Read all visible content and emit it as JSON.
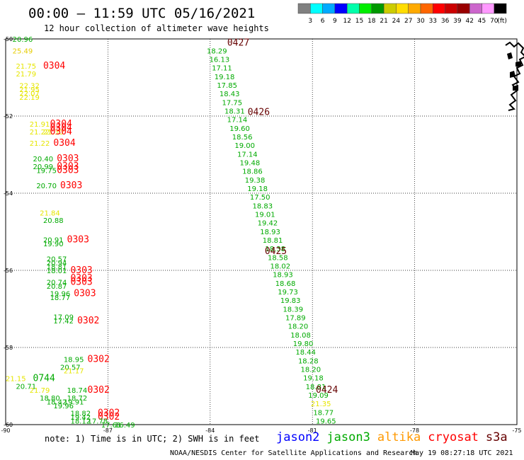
{
  "header": {
    "title": "00:00 – 11:59 UTC 05/16/2021",
    "subtitle": "12 hour collection of altimeter wave heights"
  },
  "footer": {
    "note": "note: 1) Time is in UTC; 2) SWH is in feet",
    "credit": "NOAA/NESDIS Center for Satellite Applications and Research",
    "generated": "May 19 08:27:18 UTC 2021"
  },
  "chart_data": {
    "type": "scatter",
    "title": "00:00 – 11:59 UTC 05/16/2021",
    "subtitle": "12 hour collection of altimeter wave heights",
    "xlim": [
      -90,
      -75
    ],
    "ylim": [
      -60,
      -50
    ],
    "x_ticks": [
      "-90",
      "-87",
      "-84",
      "-81",
      "-78",
      "-75"
    ],
    "y_ticks": [
      "-50",
      "-52",
      "-54",
      "-56",
      "-58",
      "-60"
    ],
    "grid": true,
    "units": "ft",
    "color_scale": {
      "labels": [
        "3",
        "6",
        "9",
        "12",
        "15",
        "18",
        "21",
        "24",
        "27",
        "30",
        "33",
        "36",
        "39",
        "42",
        "45",
        "70",
        "(ft)"
      ],
      "colors": [
        "#808080",
        "#00ffff",
        "#00aaff",
        "#0000ff",
        "#00ffaa",
        "#00ee00",
        "#009900",
        "#cccc00",
        "#ffdd00",
        "#ffaa00",
        "#ff6600",
        "#ff0000",
        "#cc0000",
        "#990000",
        "#cc66cc",
        "#ff99ff",
        "#000000"
      ]
    },
    "legend": {
      "placement": "bottom",
      "items": [
        {
          "label": "jason2",
          "color": "#0000ff"
        },
        {
          "label": "jason3",
          "color": "#00aa00"
        },
        {
          "label": "altika",
          "color": "#ff9900"
        },
        {
          "label": "cryosat",
          "color": "#ff0000"
        },
        {
          "label": "s3a",
          "color": "#660000"
        }
      ]
    },
    "tracks": [
      {
        "satellite": "s3a",
        "start_lon": -84.1,
        "end_lon": -80.9,
        "start_lat": -50.3,
        "end_lat": -59.9,
        "points": [
          {
            "v": "18.29",
            "c": "#00aa00"
          },
          {
            "v": "16.13",
            "c": "#00aa00"
          },
          {
            "v": "17.11",
            "c": "#00aa00"
          },
          {
            "v": "19.18",
            "c": "#00aa00"
          },
          {
            "v": "17.85",
            "c": "#00aa00"
          },
          {
            "v": "18.43",
            "c": "#00aa00"
          },
          {
            "v": "17.75",
            "c": "#00aa00"
          },
          {
            "v": "18.31",
            "c": "#00aa00"
          },
          {
            "v": "17.14",
            "c": "#00aa00"
          },
          {
            "v": "19.60",
            "c": "#00aa00"
          },
          {
            "v": "18.56",
            "c": "#00aa00"
          },
          {
            "v": "19.00",
            "c": "#00aa00"
          },
          {
            "v": "17.14",
            "c": "#00aa00"
          },
          {
            "v": "19.48",
            "c": "#00aa00"
          },
          {
            "v": "18.86",
            "c": "#00aa00"
          },
          {
            "v": "19.38",
            "c": "#00aa00"
          },
          {
            "v": "19.18",
            "c": "#00aa00"
          },
          {
            "v": "17.50",
            "c": "#00aa00"
          },
          {
            "v": "18.83",
            "c": "#00aa00"
          },
          {
            "v": "19.01",
            "c": "#00aa00"
          },
          {
            "v": "19.42",
            "c": "#00aa00"
          },
          {
            "v": "18.93",
            "c": "#00aa00"
          },
          {
            "v": "18.81",
            "c": "#00aa00"
          },
          {
            "v": "18.38",
            "c": "#00aa00"
          },
          {
            "v": "18.58",
            "c": "#00aa00"
          },
          {
            "v": "18.02",
            "c": "#00aa00"
          },
          {
            "v": "18.93",
            "c": "#00aa00"
          },
          {
            "v": "18.68",
            "c": "#00aa00"
          },
          {
            "v": "19.73",
            "c": "#00aa00"
          },
          {
            "v": "19.83",
            "c": "#00aa00"
          },
          {
            "v": "18.39",
            "c": "#00aa00"
          },
          {
            "v": "17.89",
            "c": "#00aa00"
          },
          {
            "v": "18.20",
            "c": "#00aa00"
          },
          {
            "v": "18.08",
            "c": "#00aa00"
          },
          {
            "v": "19.80",
            "c": "#00aa00"
          },
          {
            "v": "18.44",
            "c": "#00aa00"
          },
          {
            "v": "18.28",
            "c": "#00aa00"
          },
          {
            "v": "18.20",
            "c": "#00aa00"
          },
          {
            "v": "19.18",
            "c": "#00aa00"
          },
          {
            "v": "18.81",
            "c": "#00aa00"
          },
          {
            "v": "19.09",
            "c": "#00aa00"
          },
          {
            "v": "21.35",
            "c": "#e6e600"
          },
          {
            "v": "18.77",
            "c": "#00aa00"
          },
          {
            "v": "19.65",
            "c": "#00aa00"
          }
        ]
      }
    ],
    "labels": [
      {
        "text": "20.96",
        "c": "#00aa00",
        "lon": -89.8,
        "lat": -50.0
      },
      {
        "text": "25.49",
        "c": "#e6cc00",
        "lon": -89.8,
        "lat": -50.3
      },
      {
        "text": "21.75",
        "c": "#e6e600",
        "lon": -89.7,
        "lat": -50.7
      },
      {
        "text": "0304",
        "c": "#ff0000",
        "lon": -88.9,
        "lat": -50.7
      },
      {
        "text": "21.79",
        "c": "#e6e600",
        "lon": -89.7,
        "lat": -50.9
      },
      {
        "text": "22.32",
        "c": "#e6e600",
        "lon": -89.6,
        "lat": -51.2
      },
      {
        "text": "21.95",
        "c": "#e6e600",
        "lon": -89.6,
        "lat": -51.3
      },
      {
        "text": "22.07",
        "c": "#e6e600",
        "lon": -89.6,
        "lat": -51.4
      },
      {
        "text": "22.19",
        "c": "#e6e600",
        "lon": -89.6,
        "lat": -51.5
      },
      {
        "text": "21.91",
        "c": "#e6e600",
        "lon": -89.3,
        "lat": -52.2
      },
      {
        "text": "0304",
        "c": "#ff0000",
        "lon": -88.7,
        "lat": -52.2
      },
      {
        "text": "21.22",
        "c": "#e6e600",
        "lon": -89.3,
        "lat": -52.4
      },
      {
        "text": "21.30",
        "c": "#e6e600",
        "lon": -88.9,
        "lat": -52.4
      },
      {
        "text": "0304",
        "c": "#ff0000",
        "lon": -88.7,
        "lat": -52.3
      },
      {
        "text": "0304",
        "c": "#ff0000",
        "lon": -88.7,
        "lat": -52.4
      },
      {
        "text": "21.22",
        "c": "#e6e600",
        "lon": -89.3,
        "lat": -52.7
      },
      {
        "text": "0304",
        "c": "#ff0000",
        "lon": -88.6,
        "lat": -52.7
      },
      {
        "text": "20.40",
        "c": "#00aa00",
        "lon": -89.2,
        "lat": -53.1
      },
      {
        "text": "0303",
        "c": "#ff0000",
        "lon": -88.5,
        "lat": -53.1
      },
      {
        "text": "20.99",
        "c": "#00aa00",
        "lon": -89.2,
        "lat": -53.3
      },
      {
        "text": "0303",
        "c": "#ff0000",
        "lon": -88.5,
        "lat": -53.3
      },
      {
        "text": "19.75",
        "c": "#00aa00",
        "lon": -89.1,
        "lat": -53.4
      },
      {
        "text": "0303",
        "c": "#ff0000",
        "lon": -88.5,
        "lat": -53.4
      },
      {
        "text": "20.70",
        "c": "#00aa00",
        "lon": -89.1,
        "lat": -53.8
      },
      {
        "text": "0303",
        "c": "#ff0000",
        "lon": -88.4,
        "lat": -53.8
      },
      {
        "text": "21.84",
        "c": "#e6e600",
        "lon": -89.0,
        "lat": -54.5
      },
      {
        "text": "20.88",
        "c": "#00aa00",
        "lon": -88.9,
        "lat": -54.7
      },
      {
        "text": "20.91",
        "c": "#00aa00",
        "lon": -88.9,
        "lat": -55.2
      },
      {
        "text": "0303",
        "c": "#ff0000",
        "lon": -88.2,
        "lat": -55.2
      },
      {
        "text": "19.90",
        "c": "#00aa00",
        "lon": -88.9,
        "lat": -55.3
      },
      {
        "text": "20.57",
        "c": "#00aa00",
        "lon": -88.8,
        "lat": -55.7
      },
      {
        "text": "20.94",
        "c": "#00aa00",
        "lon": -88.8,
        "lat": -55.8
      },
      {
        "text": "18.81",
        "c": "#00aa00",
        "lon": -88.8,
        "lat": -55.9
      },
      {
        "text": "18.01",
        "c": "#00aa00",
        "lon": -88.8,
        "lat": -56.0
      },
      {
        "text": "0303",
        "c": "#ff0000",
        "lon": -88.1,
        "lat": -56.0
      },
      {
        "text": "20.74",
        "c": "#00aa00",
        "lon": -88.8,
        "lat": -56.3
      },
      {
        "text": "0303",
        "c": "#ff0000",
        "lon": -88.1,
        "lat": -56.2
      },
      {
        "text": "20.87",
        "c": "#00aa00",
        "lon": -88.8,
        "lat": -56.4
      },
      {
        "text": "0303",
        "c": "#ff0000",
        "lon": -88.1,
        "lat": -56.3
      },
      {
        "text": "19.96",
        "c": "#00aa00",
        "lon": -88.7,
        "lat": -56.6
      },
      {
        "text": "0303",
        "c": "#ff0000",
        "lon": -88.0,
        "lat": -56.6
      },
      {
        "text": "18.77",
        "c": "#00aa00",
        "lon": -88.7,
        "lat": -56.7
      },
      {
        "text": "17.09",
        "c": "#00aa00",
        "lon": -88.6,
        "lat": -57.2
      },
      {
        "text": "17.42",
        "c": "#00aa00",
        "lon": -88.6,
        "lat": -57.3
      },
      {
        "text": "0302",
        "c": "#ff0000",
        "lon": -87.9,
        "lat": -57.3
      },
      {
        "text": "18.95",
        "c": "#00aa00",
        "lon": -88.3,
        "lat": -58.3
      },
      {
        "text": "0302",
        "c": "#ff0000",
        "lon": -87.6,
        "lat": -58.3
      },
      {
        "text": "20.57",
        "c": "#00aa00",
        "lon": -88.4,
        "lat": -58.5
      },
      {
        "text": "21.17",
        "c": "#e6e600",
        "lon": -88.3,
        "lat": -58.6
      },
      {
        "text": "21.15",
        "c": "#e6e600",
        "lon": -90.0,
        "lat": -58.8
      },
      {
        "text": "0744",
        "c": "#00aa00",
        "lon": -89.2,
        "lat": -58.8
      },
      {
        "text": "20.71",
        "c": "#00aa00",
        "lon": -89.7,
        "lat": -59.0
      },
      {
        "text": "21.79",
        "c": "#e6e600",
        "lon": -89.3,
        "lat": -59.1
      },
      {
        "text": "18.74",
        "c": "#00aa00",
        "lon": -88.2,
        "lat": -59.1
      },
      {
        "text": "0302",
        "c": "#ff0000",
        "lon": -87.6,
        "lat": -59.1
      },
      {
        "text": "18.80",
        "c": "#00aa00",
        "lon": -89.0,
        "lat": -59.3
      },
      {
        "text": "18.72",
        "c": "#00aa00",
        "lon": -88.2,
        "lat": -59.3
      },
      {
        "text": "18.42",
        "c": "#00aa00",
        "lon": -88.8,
        "lat": -59.4
      },
      {
        "text": "19.91",
        "c": "#00aa00",
        "lon": -88.3,
        "lat": -59.4
      },
      {
        "text": "19.96",
        "c": "#00aa00",
        "lon": -88.6,
        "lat": -59.5
      },
      {
        "text": "18.82",
        "c": "#00aa00",
        "lon": -88.1,
        "lat": -59.7
      },
      {
        "text": "0302",
        "c": "#ff0000",
        "lon": -87.3,
        "lat": -59.7
      },
      {
        "text": "19.42",
        "c": "#00aa00",
        "lon": -88.1,
        "lat": -59.8
      },
      {
        "text": "0302",
        "c": "#ff0000",
        "lon": -87.3,
        "lat": -59.8
      },
      {
        "text": "18.12",
        "c": "#00aa00",
        "lon": -88.1,
        "lat": -59.9
      },
      {
        "text": "17.78",
        "c": "#00aa00",
        "lon": -87.6,
        "lat": -59.9
      },
      {
        "text": "17.61",
        "c": "#00aa00",
        "lon": -87.2,
        "lat": -60.0
      },
      {
        "text": "16.49",
        "c": "#00aa00",
        "lon": -86.8,
        "lat": -60.0
      },
      {
        "text": "0427",
        "c": "#660000",
        "lon": -83.5,
        "lat": -50.1
      },
      {
        "text": "0426",
        "c": "#660000",
        "lon": -82.9,
        "lat": -51.9
      },
      {
        "text": "0425",
        "c": "#660000",
        "lon": -82.4,
        "lat": -55.5
      },
      {
        "text": "0424",
        "c": "#660000",
        "lon": -80.9,
        "lat": -59.1
      }
    ]
  }
}
